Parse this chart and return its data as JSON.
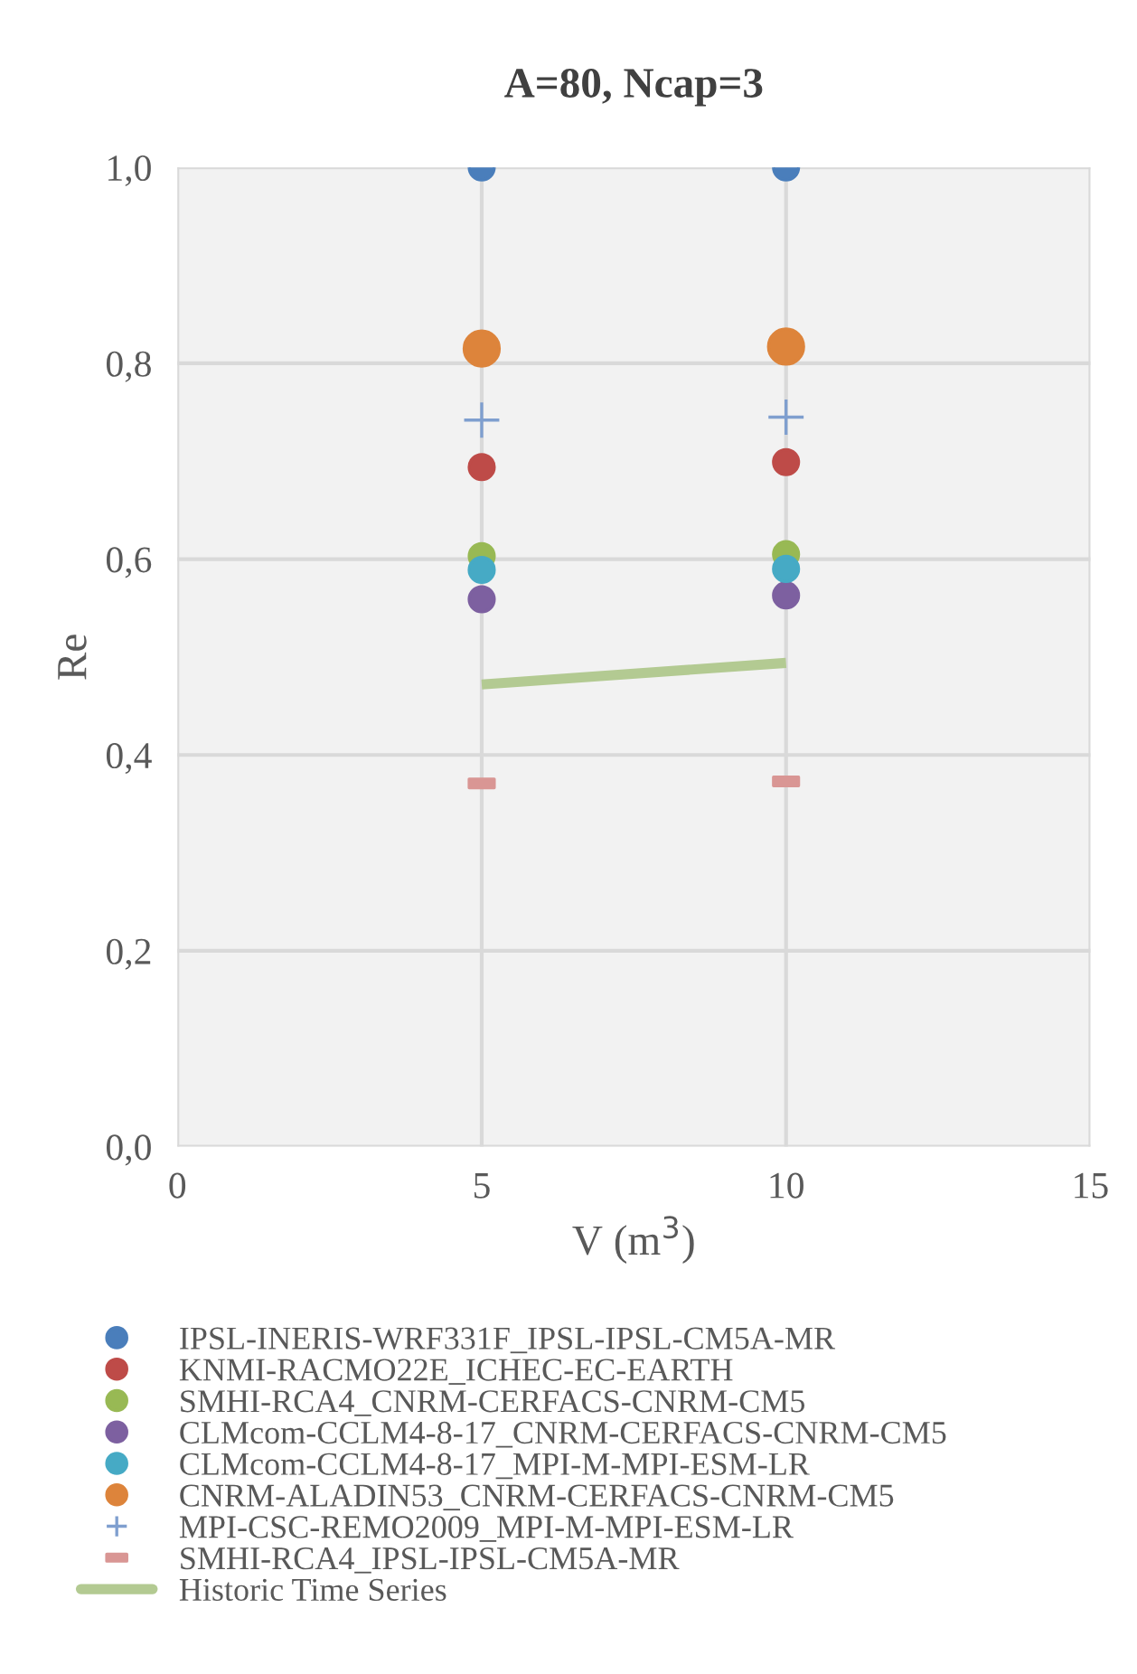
{
  "chart_data": {
    "type": "scatter",
    "title": "A=80, Ncap=3",
    "xlabel": "V (m$^{3}$)",
    "ylabel": "Re",
    "x": [
      5,
      10
    ],
    "xlim": [
      0,
      15
    ],
    "xticks": [
      0,
      5,
      10,
      15
    ],
    "ylim": [
      0,
      1
    ],
    "yticks": [
      {
        "value": 0,
        "label": "0,0"
      },
      {
        "value": 0.2,
        "label": "0,2"
      },
      {
        "value": 0.4,
        "label": "0,4"
      },
      {
        "value": 0.6,
        "label": "0,6"
      },
      {
        "value": 0.8,
        "label": "0,8"
      },
      {
        "value": 1,
        "label": "1,0"
      }
    ],
    "grid": true,
    "legend": "bottom",
    "marker": "circle",
    "series": [
      {
        "name": "IPSL-INERIS-WRF331F_IPSL-IPSL-CM5A-MR",
        "color": "#4a7ebb",
        "values": [
          1.0,
          1.0
        ]
      },
      {
        "name": "KNMI-RACMO22E_ICHEC-EC-EARTH",
        "color": "#be4b48",
        "values": [
          0.694,
          0.699
        ]
      },
      {
        "name": "SMHI-RCA4_CNRM-CERFACS-CNRM-CM5",
        "color": "#98b954",
        "values": [
          0.603,
          0.605
        ]
      },
      {
        "name": "CLMcom-CCLM4-8-17_CNRM-CERFACS-CNRM-CM5",
        "color": "#7d60a0",
        "values": [
          0.559,
          0.563
        ]
      },
      {
        "name": "CLMcom-CCLM4-8-17_MPI-M-MPI-ESM-LR",
        "color": "#46aac5",
        "values": [
          0.589,
          0.59
        ]
      },
      {
        "name": "CNRM-ALADIN53_CNRM-CERFACS-CNRM-CM5",
        "color": "#dd843b",
        "values": [
          0.815,
          0.817
        ]
      },
      {
        "name": "MPI-CSC-REMO2009_MPI-M-MPI-ESM-LR",
        "color": "#7f9fcf",
        "values": [
          0.742,
          0.745
        ],
        "marker": "cross"
      },
      {
        "name": "SMHI-RCA4_IPSL-IPSL-CM5A-MR",
        "color": "#d99694",
        "values": [
          0.371,
          0.373
        ],
        "marker": "square"
      },
      {
        "name": "Historic Time Series",
        "color": "#b3ca92",
        "values": [
          0.472,
          0.494
        ],
        "type": "line",
        "marker": "none"
      }
    ]
  }
}
